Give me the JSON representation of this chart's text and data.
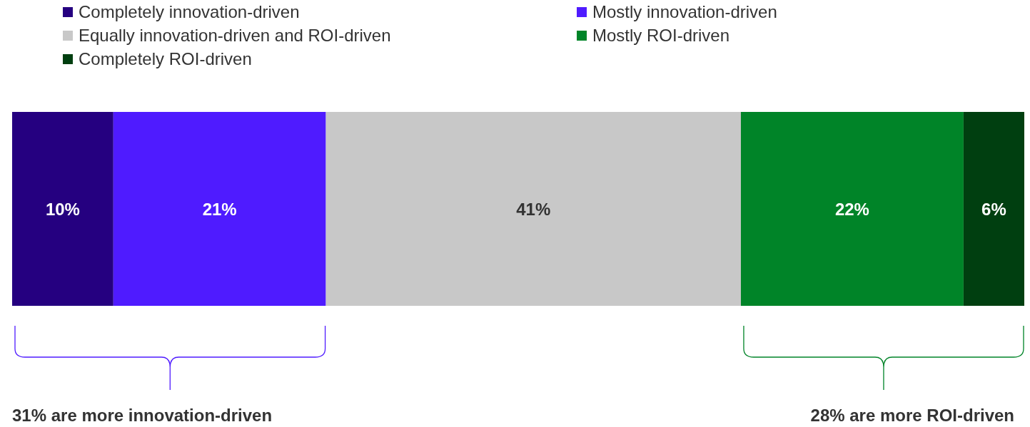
{
  "chart_data": {
    "type": "bar",
    "orientation": "horizontal",
    "stacked": true,
    "categories": [
      null
    ],
    "legend": "top",
    "grid": false,
    "series": [
      {
        "name": "Completely innovation-driven",
        "color": "#250080",
        "values": [
          10
        ],
        "value_labels": [
          "10%"
        ]
      },
      {
        "name": "Mostly innovation-driven",
        "color": "#4f1bff",
        "values": [
          21
        ],
        "value_labels": [
          "21%"
        ]
      },
      {
        "name": "Equally innovation-driven and ROI-driven",
        "color": "#c8c8c8",
        "values": [
          41
        ],
        "value_labels": [
          "41%"
        ]
      },
      {
        "name": "Mostly ROI-driven",
        "color": "#008428",
        "values": [
          22
        ],
        "value_labels": [
          "22%"
        ]
      },
      {
        "name": "Completely ROI-driven",
        "color": "#003f10",
        "values": [
          6
        ],
        "value_labels": [
          "6%"
        ]
      }
    ],
    "annotations": [
      "31% are more innovation-driven",
      "28% are more ROI-driven"
    ]
  }
}
